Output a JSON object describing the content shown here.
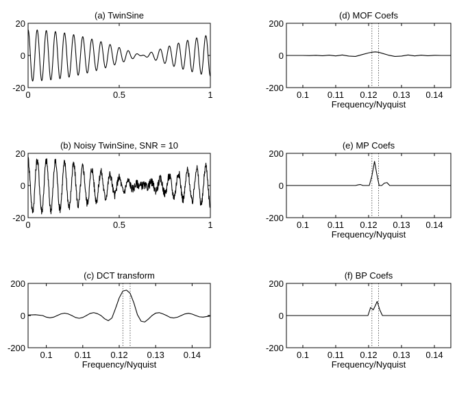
{
  "chart_data": [
    {
      "id": "a",
      "type": "line",
      "title": "(a) TwinSine",
      "xlabel": "",
      "xlim": [
        0,
        1
      ],
      "ylim": [
        -20,
        20
      ],
      "xticks": [
        0,
        0.5,
        1
      ],
      "xtick_labels": [
        "0",
        "0.5",
        "1"
      ],
      "yticks": [
        -20,
        0,
        20
      ],
      "ytick_labels": [
        "-20",
        "0",
        "20"
      ],
      "grid": false,
      "signal": {
        "amplitude": 16,
        "f1_cycles": 19.6,
        "f2_cycles": 20.4,
        "noisy": false
      },
      "dotted_vlines": []
    },
    {
      "id": "b",
      "type": "line",
      "title": "(b) Noisy TwinSine, SNR = 10",
      "xlabel": "",
      "xlim": [
        0,
        1
      ],
      "ylim": [
        -20,
        20
      ],
      "xticks": [
        0,
        0.5,
        1
      ],
      "xtick_labels": [
        "0",
        "0.5",
        "1"
      ],
      "yticks": [
        -20,
        0,
        20
      ],
      "ytick_labels": [
        "-20",
        "0",
        "20"
      ],
      "grid": false,
      "signal": {
        "amplitude": 16,
        "f1_cycles": 19.6,
        "f2_cycles": 20.4,
        "noisy": true,
        "noise_amplitude": 1.6
      },
      "dotted_vlines": []
    },
    {
      "id": "c",
      "type": "line",
      "title": "(c) DCT transform",
      "xlabel": "Frequency/Nyquist",
      "xlim": [
        0.095,
        0.145
      ],
      "ylim": [
        -200,
        200
      ],
      "xticks": [
        0.1,
        0.11,
        0.12,
        0.13,
        0.14
      ],
      "xtick_labels": [
        "0.1",
        "0.11",
        "0.12",
        "0.13",
        "0.14"
      ],
      "yticks": [
        -200,
        0,
        200
      ],
      "ytick_labels": [
        "-200",
        "0",
        "200"
      ],
      "grid": false,
      "dotted_vlines": [
        0.121,
        0.123
      ],
      "x": [
        0.095,
        0.097,
        0.099,
        0.1,
        0.101,
        0.102,
        0.103,
        0.104,
        0.105,
        0.106,
        0.107,
        0.108,
        0.109,
        0.11,
        0.111,
        0.112,
        0.113,
        0.114,
        0.115,
        0.116,
        0.117,
        0.118,
        0.119,
        0.12,
        0.121,
        0.122,
        0.123,
        0.124,
        0.125,
        0.126,
        0.127,
        0.128,
        0.129,
        0.13,
        0.131,
        0.132,
        0.133,
        0.134,
        0.135,
        0.136,
        0.137,
        0.138,
        0.139,
        0.14,
        0.141,
        0.142,
        0.143,
        0.144,
        0.145
      ],
      "y": [
        3,
        5,
        0,
        -10,
        -14,
        -10,
        0,
        10,
        15,
        10,
        0,
        -12,
        -17,
        -12,
        0,
        13,
        18,
        12,
        0,
        -20,
        -32,
        -15,
        45,
        110,
        152,
        158,
        138,
        80,
        5,
        -35,
        -40,
        -22,
        0,
        15,
        18,
        10,
        0,
        -12,
        -15,
        -10,
        0,
        10,
        14,
        9,
        0,
        -8,
        -10,
        -6,
        -3
      ]
    },
    {
      "id": "d",
      "type": "line",
      "title": "(d) MOF Coefs",
      "xlabel": "Frequency/Nyquist",
      "xlim": [
        0.095,
        0.145
      ],
      "ylim": [
        -200,
        200
      ],
      "xticks": [
        0.1,
        0.11,
        0.12,
        0.13,
        0.14
      ],
      "xtick_labels": [
        "0.1",
        "0.11",
        "0.12",
        "0.13",
        "0.14"
      ],
      "yticks": [
        -200,
        0,
        200
      ],
      "ytick_labels": [
        "-200",
        "0",
        "200"
      ],
      "grid": false,
      "dotted_vlines": [
        0.121,
        0.123
      ],
      "x": [
        0.095,
        0.1,
        0.102,
        0.104,
        0.106,
        0.108,
        0.11,
        0.112,
        0.114,
        0.116,
        0.118,
        0.12,
        0.121,
        0.122,
        0.123,
        0.124,
        0.126,
        0.128,
        0.13,
        0.132,
        0.134,
        0.136,
        0.138,
        0.14,
        0.142,
        0.145
      ],
      "y": [
        0,
        0,
        -1,
        1,
        -2,
        2,
        -3,
        3,
        -4,
        -6,
        5,
        16,
        20,
        22,
        20,
        14,
        2,
        -6,
        -4,
        3,
        -3,
        2,
        -2,
        1,
        0,
        0
      ]
    },
    {
      "id": "e",
      "type": "line",
      "title": "(e) MP Coefs",
      "xlabel": "Frequency/Nyquist",
      "xlim": [
        0.095,
        0.145
      ],
      "ylim": [
        -200,
        200
      ],
      "xticks": [
        0.1,
        0.11,
        0.12,
        0.13,
        0.14
      ],
      "xtick_labels": [
        "0.1",
        "0.11",
        "0.12",
        "0.13",
        "0.14"
      ],
      "yticks": [
        -200,
        0,
        200
      ],
      "ytick_labels": [
        "-200",
        "0",
        "200"
      ],
      "grid": false,
      "dotted_vlines": [
        0.121,
        0.123
      ],
      "x": [
        0.095,
        0.116,
        0.1168,
        0.1175,
        0.1183,
        0.1195,
        0.1202,
        0.121,
        0.1218,
        0.1225,
        0.1232,
        0.124,
        0.1248,
        0.1256,
        0.1264,
        0.145
      ],
      "y": [
        0,
        0,
        4,
        6,
        0,
        0,
        0,
        60,
        150,
        70,
        0,
        0,
        15,
        18,
        0,
        0
      ]
    },
    {
      "id": "f",
      "type": "line",
      "title": "(f) BP Coefs",
      "xlabel": "Frequency/Nyquist",
      "xlim": [
        0.095,
        0.145
      ],
      "ylim": [
        -200,
        200
      ],
      "xticks": [
        0.1,
        0.11,
        0.12,
        0.13,
        0.14
      ],
      "xtick_labels": [
        "0.1",
        "0.11",
        "0.12",
        "0.13",
        "0.14"
      ],
      "yticks": [
        -200,
        0,
        200
      ],
      "ytick_labels": [
        "-200",
        "0",
        "200"
      ],
      "grid": false,
      "dotted_vlines": [
        0.121,
        0.123
      ],
      "x": [
        0.095,
        0.1198,
        0.1206,
        0.1214,
        0.122,
        0.1226,
        0.1234,
        0.1242,
        0.145
      ],
      "y": [
        0,
        0,
        50,
        35,
        60,
        88,
        35,
        0,
        0
      ]
    }
  ]
}
